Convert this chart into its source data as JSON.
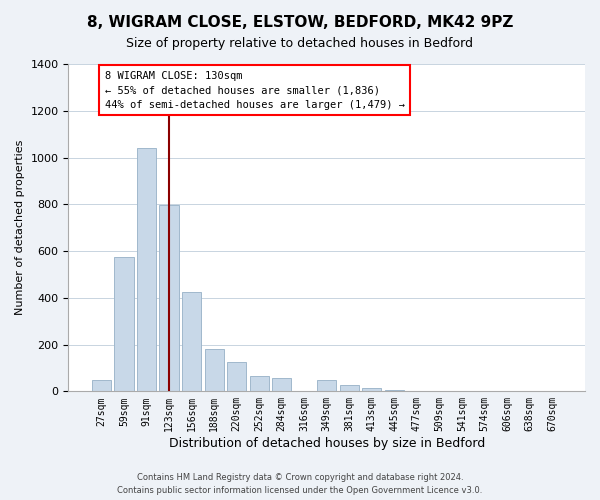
{
  "title": "8, WIGRAM CLOSE, ELSTOW, BEDFORD, MK42 9PZ",
  "subtitle": "Size of property relative to detached houses in Bedford",
  "xlabel": "Distribution of detached houses by size in Bedford",
  "ylabel": "Number of detached properties",
  "bar_color": "#c8d8e8",
  "bar_edge_color": "#a0b8cc",
  "vline_x": 3,
  "vline_color": "#8b0000",
  "categories": [
    "27sqm",
    "59sqm",
    "91sqm",
    "123sqm",
    "156sqm",
    "188sqm",
    "220sqm",
    "252sqm",
    "284sqm",
    "316sqm",
    "349sqm",
    "381sqm",
    "413sqm",
    "445sqm",
    "477sqm",
    "509sqm",
    "541sqm",
    "574sqm",
    "606sqm",
    "638sqm",
    "670sqm"
  ],
  "values": [
    50,
    575,
    1040,
    795,
    425,
    180,
    125,
    65,
    55,
    0,
    50,
    25,
    15,
    5,
    0,
    0,
    0,
    0,
    0,
    0,
    0
  ],
  "ylim": [
    0,
    1400
  ],
  "yticks": [
    0,
    200,
    400,
    600,
    800,
    1000,
    1200,
    1400
  ],
  "annotation_lines": [
    "8 WIGRAM CLOSE: 130sqm",
    "← 55% of detached houses are smaller (1,836)",
    "44% of semi-detached houses are larger (1,479) →"
  ],
  "footer_line1": "Contains HM Land Registry data © Crown copyright and database right 2024.",
  "footer_line2": "Contains public sector information licensed under the Open Government Licence v3.0.",
  "background_color": "#eef2f7",
  "plot_bg_color": "#ffffff",
  "grid_color": "#c8d4e0"
}
